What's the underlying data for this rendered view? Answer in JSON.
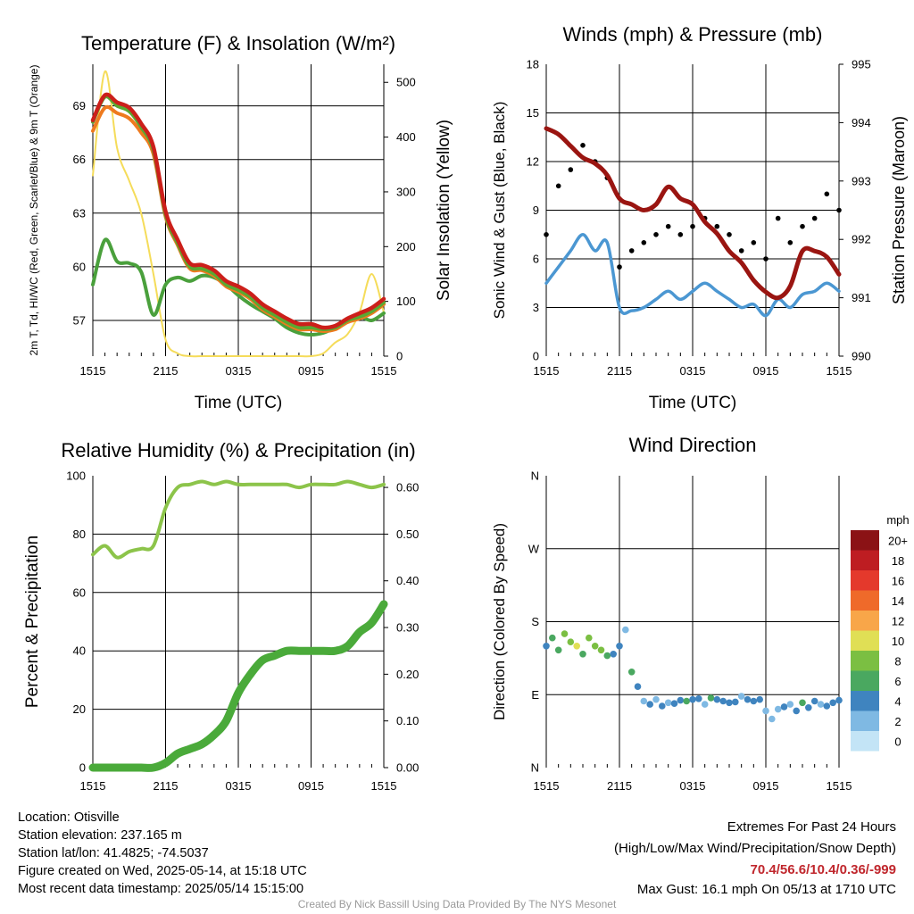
{
  "colors": {
    "temp": "#cc1f1a",
    "heat_index": "#5aa832",
    "dewpoint": "#4aa03c",
    "temp9m": "#ee7a1e",
    "solar": "#f5dc5a",
    "wind": "#4b97d2",
    "gust": "#000000",
    "pressure": "#9a1511",
    "rh": "#8cc44a",
    "precip": "#4aaa3a",
    "extremes": "#c0272d"
  },
  "chart_data": [
    {
      "type": "line",
      "title": "Temperature (F) & Insolation (W/m²)",
      "xlabel": "Time (UTC)",
      "ylabel": "2m T, Td, HI/WC (Red, Green, Scarlet/Blue) & 9m T (Orange)",
      "y2label": "Solar Insolation (Yellow)",
      "xticks": [
        "1515",
        "2115",
        "0315",
        "0915",
        "1515"
      ],
      "yticks": [
        "57",
        "60",
        "63",
        "66",
        "69"
      ],
      "ylim": [
        55,
        71.33
      ],
      "y2ticks": [
        "0",
        "100",
        "200",
        "300",
        "400",
        "500"
      ],
      "y2lim": [
        0,
        533
      ],
      "x": [
        0,
        1,
        2,
        3,
        4,
        5,
        6,
        7,
        8,
        9,
        10,
        11,
        12,
        13,
        14,
        15,
        16,
        17,
        18,
        19,
        20,
        21,
        22,
        23,
        24
      ],
      "series": [
        {
          "key": "temp",
          "values": [
            68.2,
            69.6,
            69.2,
            68.9,
            68.0,
            66.7,
            63.1,
            61.5,
            60.2,
            60.1,
            59.8,
            59.2,
            58.9,
            58.5,
            57.9,
            57.5,
            57.1,
            56.8,
            56.8,
            56.6,
            56.7,
            57.1,
            57.4,
            57.7,
            58.2
          ]
        },
        {
          "key": "heat_index",
          "values": [
            68.1,
            69.5,
            69.0,
            68.7,
            67.8,
            66.5,
            62.9,
            61.3,
            60.0,
            59.9,
            59.6,
            59.0,
            58.7,
            58.3,
            57.7,
            57.3,
            56.9,
            56.6,
            56.6,
            56.5,
            56.6,
            57.0,
            57.2,
            57.5,
            58.0
          ]
        },
        {
          "key": "temp9m",
          "values": [
            67.6,
            68.9,
            68.6,
            68.3,
            67.5,
            66.3,
            62.8,
            61.2,
            59.9,
            59.8,
            59.5,
            58.9,
            58.6,
            58.2,
            57.6,
            57.2,
            56.8,
            56.5,
            56.5,
            56.4,
            56.5,
            56.9,
            57.1,
            57.4,
            57.9
          ]
        },
        {
          "key": "dewpoint",
          "values": [
            59.0,
            61.5,
            60.3,
            60.2,
            59.7,
            57.3,
            59.0,
            59.4,
            59.2,
            59.5,
            59.4,
            59.0,
            58.4,
            57.9,
            57.5,
            57.1,
            56.6,
            56.3,
            56.2,
            56.3,
            56.6,
            57.0,
            57.2,
            57.0,
            57.4
          ]
        },
        {
          "key": "solar",
          "axis": "y2",
          "values": [
            330,
            520,
            380,
            320,
            260,
            150,
            30,
            5,
            0,
            0,
            0,
            0,
            0,
            0,
            0,
            0,
            0,
            0,
            0,
            5,
            25,
            40,
            80,
            150,
            80
          ]
        }
      ]
    },
    {
      "type": "line",
      "title": "Winds (mph) & Pressure (mb)",
      "xlabel": "Time (UTC)",
      "ylabel": "Sonic Wind & Gust (Blue, Black)",
      "y2label": "Station Pressure (Maroon)",
      "xticks": [
        "1515",
        "2115",
        "0315",
        "0915",
        "1515"
      ],
      "yticks": [
        "0",
        "3",
        "6",
        "9",
        "12",
        "15",
        "18"
      ],
      "ylim": [
        0,
        18
      ],
      "y2ticks": [
        "990",
        "991",
        "992",
        "993",
        "994",
        "995"
      ],
      "y2lim": [
        990,
        995
      ],
      "x": [
        0,
        1,
        2,
        3,
        4,
        5,
        6,
        7,
        8,
        9,
        10,
        11,
        12,
        13,
        14,
        15,
        16,
        17,
        18,
        19,
        20,
        21,
        22,
        23,
        24
      ],
      "series": [
        {
          "key": "wind",
          "values": [
            4.5,
            5.5,
            6.5,
            7.5,
            6.5,
            7.0,
            3.0,
            2.8,
            3.0,
            3.5,
            4.0,
            3.5,
            4.0,
            4.5,
            4.0,
            3.5,
            3.0,
            3.2,
            2.5,
            3.5,
            3.0,
            3.8,
            4.0,
            4.5,
            4.0
          ]
        },
        {
          "key": "gust",
          "values": [
            7.5,
            10.5,
            11.5,
            13.0,
            12.0,
            11.0,
            5.5,
            6.5,
            7.0,
            7.5,
            8.0,
            7.5,
            8.0,
            8.5,
            8.0,
            7.5,
            6.5,
            7.0,
            6.0,
            8.5,
            7.0,
            8.0,
            8.5,
            10.0,
            9.0
          ]
        },
        {
          "key": "pressure",
          "axis": "y2",
          "values": [
            993.9,
            993.8,
            993.6,
            993.4,
            993.3,
            993.1,
            992.7,
            992.6,
            992.5,
            992.6,
            992.9,
            992.7,
            992.6,
            992.3,
            992.1,
            991.8,
            991.6,
            991.3,
            991.1,
            991.0,
            991.2,
            991.8,
            991.8,
            991.7,
            991.4
          ]
        }
      ]
    },
    {
      "type": "line",
      "title": "Relative Humidity (%) & Precipitation (in)",
      "ylabel": "Percent & Precipitation",
      "xticks": [
        "1515",
        "2115",
        "0315",
        "0915",
        "1515"
      ],
      "yticks": [
        "0",
        "20",
        "40",
        "60",
        "80",
        "100"
      ],
      "ylim": [
        0,
        100
      ],
      "y2ticks": [
        "0.00",
        "0.10",
        "0.20",
        "0.30",
        "0.40",
        "0.50",
        "0.60"
      ],
      "y2lim": [
        0,
        0.625
      ],
      "x": [
        0,
        1,
        2,
        3,
        4,
        5,
        6,
        7,
        8,
        9,
        10,
        11,
        12,
        13,
        14,
        15,
        16,
        17,
        18,
        19,
        20,
        21,
        22,
        23,
        24
      ],
      "series": [
        {
          "key": "rh",
          "values": [
            73,
            76,
            72,
            74,
            75,
            76,
            89,
            96,
            97,
            98,
            97,
            98,
            97,
            97,
            97,
            97,
            97,
            96,
            97,
            97,
            97,
            98,
            97,
            96,
            97
          ]
        },
        {
          "key": "precip",
          "axis": "y2",
          "values": [
            0.0,
            0.0,
            0.0,
            0.0,
            0.0,
            0.0,
            0.01,
            0.03,
            0.04,
            0.05,
            0.07,
            0.1,
            0.16,
            0.2,
            0.23,
            0.24,
            0.25,
            0.25,
            0.25,
            0.25,
            0.25,
            0.26,
            0.29,
            0.31,
            0.35
          ]
        }
      ]
    },
    {
      "type": "scatter",
      "title": "Wind Direction",
      "ylabel": "Direction (Colored By Speed)",
      "xticks": [
        "1515",
        "2115",
        "0315",
        "0915",
        "1515"
      ],
      "yticks": [
        "N",
        "E",
        "S",
        "W",
        "N"
      ],
      "ylim": [
        0,
        360
      ],
      "legend_title": "mph",
      "legend_labels": [
        "0",
        "2",
        "4",
        "6",
        "8",
        "10",
        "12",
        "14",
        "16",
        "18",
        "20+"
      ],
      "legend_colors": [
        "#c3e4f6",
        "#7fb9e3",
        "#3f84bf",
        "#4aa860",
        "#7bbf42",
        "#e0df55",
        "#f8a649",
        "#ef6a2a",
        "#e4392c",
        "#be1d22",
        "#8b1215"
      ],
      "x": [
        0,
        0.5,
        1,
        1.5,
        2,
        2.5,
        3,
        3.5,
        4,
        4.5,
        5,
        5.5,
        6,
        6.5,
        7,
        7.5,
        8,
        8.5,
        9,
        9.5,
        10,
        10.5,
        11,
        11.5,
        12,
        12.5,
        13,
        13.5,
        14,
        14.5,
        15,
        15.5,
        16,
        16.5,
        17,
        17.5,
        18,
        18.5,
        19,
        19.5,
        20,
        20.5,
        21,
        21.5,
        22,
        22.5,
        23,
        23.5,
        24
      ],
      "values": [
        150,
        160,
        145,
        165,
        155,
        150,
        140,
        160,
        150,
        145,
        138,
        140,
        150,
        170,
        118,
        100,
        82,
        78,
        84,
        76,
        80,
        79,
        83,
        82,
        84,
        85,
        78,
        86,
        84,
        82,
        80,
        81,
        88,
        84,
        82,
        84,
        70,
        60,
        72,
        75,
        78,
        70,
        80,
        74,
        82,
        78,
        76,
        80,
        83
      ],
      "speeds": [
        4,
        6,
        5,
        8,
        7,
        9,
        6,
        8,
        7,
        8,
        6,
        4,
        3,
        1,
        5,
        3,
        2,
        3,
        2,
        3,
        2,
        4,
        3,
        5,
        4,
        3,
        2,
        6,
        4,
        3,
        3,
        4,
        2,
        3,
        4,
        3,
        2,
        1,
        2,
        3,
        2,
        3,
        6,
        3,
        4,
        2,
        3,
        4,
        3
      ]
    }
  ],
  "info": {
    "location": "Location: Otisville",
    "elevation": "Station elevation: 237.165 m",
    "latlon": "Station lat/lon: 41.4825; -74.5037",
    "created": "Figure created on Wed, 2025-05-14, at 15:18 UTC",
    "recent": "Most recent data timestamp: 2025/05/14 15:15:00"
  },
  "extremes": {
    "title": "Extremes For Past 24 Hours",
    "subtitle": "(High/Low/Max Wind/Precipitation/Snow Depth)",
    "values": "70.4/56.6/10.4/0.36/-999",
    "max_gust": "Max Gust: 16.1 mph On 05/13 at 1710 UTC"
  },
  "credit": "Created By Nick Bassill Using Data Provided By The NYS Mesonet"
}
